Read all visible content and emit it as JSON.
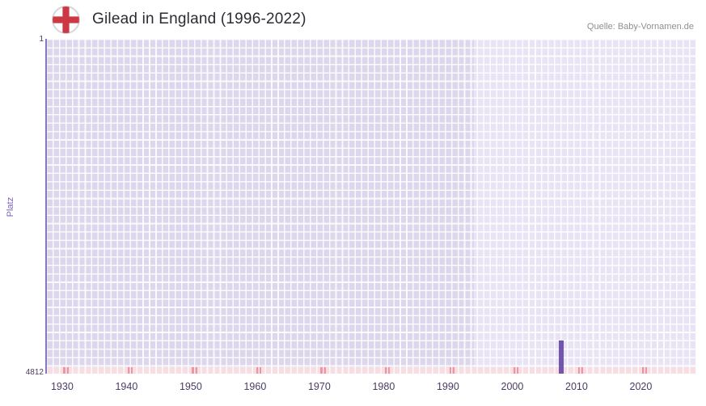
{
  "header": {
    "title": "Gilead in England (1996-2022)",
    "source": "Quelle: Baby-Vornamen.de",
    "flag_icon": "england-flag"
  },
  "chart_data": {
    "type": "bar",
    "title": "Gilead in England (1996-2022)",
    "ylabel": "Platz",
    "y_top_label": "1",
    "y_bottom_label": "4812",
    "y_axis_inverted": true,
    "ylim": [
      1,
      4812
    ],
    "x_range": [
      1927.5,
      2028.5
    ],
    "x_ticks": [
      "1930",
      "1940",
      "1950",
      "1960",
      "1970",
      "1980",
      "1990",
      "2000",
      "2010",
      "2020"
    ],
    "data_period": {
      "start": 1994,
      "end": 2028.5
    },
    "bars": [
      {
        "year": 2007,
        "rank": 4335
      }
    ],
    "grid": true,
    "legend": false,
    "colors": {
      "bar": "#7256ae",
      "plot_bg": "#dcd7ec",
      "plot_bg_light": "#e8e4f5",
      "grid_line": "#ffffff",
      "axis_spine": "#8877bd",
      "strip_cell": "#f6dee3",
      "strip_mark": "#ee95a2",
      "tick_label": "#4a3a66",
      "axis_label": "#7a63bb",
      "title": "#2b2b33",
      "source": "#8f8f8f",
      "flag_red": "#cc3944"
    }
  }
}
